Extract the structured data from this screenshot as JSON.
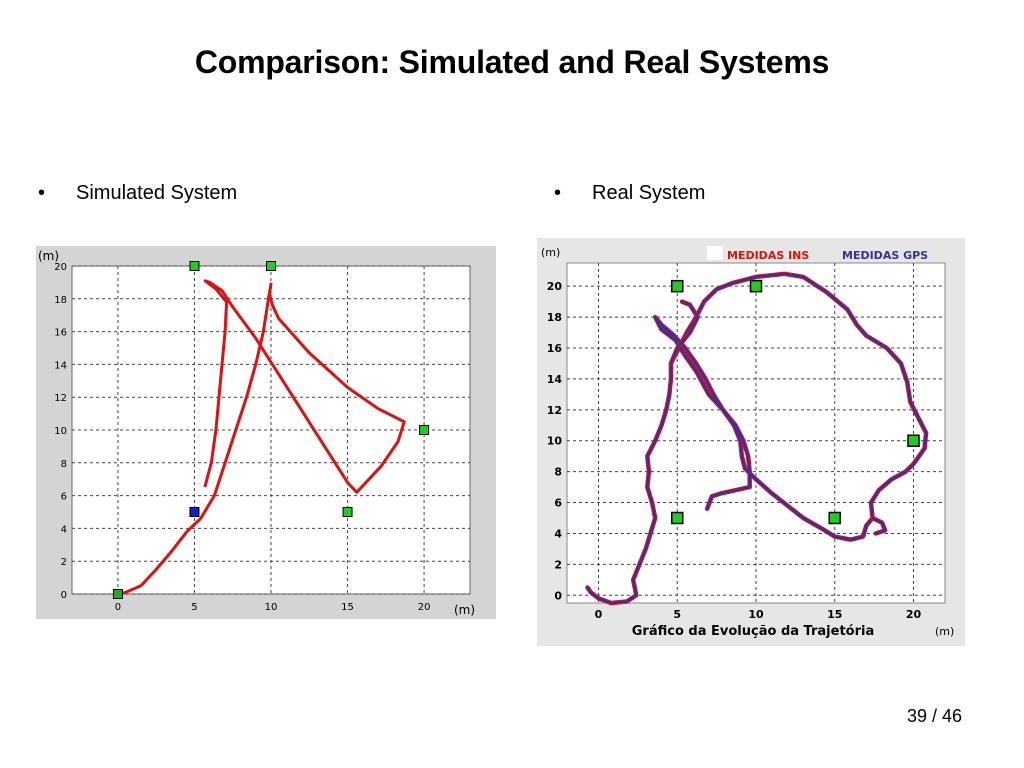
{
  "slide": {
    "title": "Comparison: Simulated and Real Systems",
    "page_number": "39 / 46",
    "bullets": [
      "Simulated System",
      "Real System"
    ]
  },
  "chart_data": [
    {
      "type": "scatter",
      "name": "simulated",
      "title": "",
      "xlabel": "(m)",
      "ylabel": "(m)",
      "xlim": [
        -3,
        23
      ],
      "ylim": [
        0,
        20
      ],
      "x_ticks": [
        0,
        5,
        10,
        15,
        20
      ],
      "y_ticks": [
        0,
        2,
        4,
        6,
        8,
        10,
        12,
        14,
        16,
        18,
        20
      ],
      "grid": true,
      "colors": {
        "trajectory": "#dd1111",
        "landmark": "#22cc22",
        "start": "#22aa22",
        "marker_blue": "#1122cc"
      },
      "landmarks": [
        {
          "x": 5,
          "y": 20
        },
        {
          "x": 10,
          "y": 20
        },
        {
          "x": 20,
          "y": 10
        },
        {
          "x": 15,
          "y": 5
        }
      ],
      "blue_marker": {
        "x": 5,
        "y": 5
      },
      "start_marker": {
        "x": 0,
        "y": 0
      },
      "trajectory": [
        [
          0,
          0
        ],
        [
          0.5,
          0.1
        ],
        [
          1.5,
          0.5
        ],
        [
          2.5,
          1.5
        ],
        [
          3.5,
          2.6
        ],
        [
          4.5,
          3.8
        ],
        [
          5.4,
          4.6
        ],
        [
          6.3,
          6.0
        ],
        [
          7.0,
          8.0
        ],
        [
          7.7,
          10.0
        ],
        [
          8.4,
          12.0
        ],
        [
          9.0,
          14.0
        ],
        [
          9.5,
          16.0
        ],
        [
          9.8,
          17.8
        ],
        [
          10.0,
          18.9
        ],
        [
          9.9,
          18.3
        ],
        [
          10.1,
          17.6
        ],
        [
          10.5,
          16.8
        ],
        [
          12.5,
          14.7
        ],
        [
          15.0,
          12.6
        ],
        [
          17.0,
          11.3
        ],
        [
          18.7,
          10.5
        ],
        [
          18.3,
          9.3
        ],
        [
          17.2,
          7.8
        ],
        [
          15.6,
          6.2
        ],
        [
          15.0,
          6.8
        ],
        [
          13.5,
          9.0
        ],
        [
          12.0,
          11.2
        ],
        [
          10.5,
          13.4
        ],
        [
          9.0,
          15.6
        ],
        [
          7.5,
          17.5
        ],
        [
          6.8,
          18.5
        ],
        [
          6.0,
          19.0
        ],
        [
          5.7,
          19.1
        ],
        [
          6.4,
          18.6
        ],
        [
          7.1,
          17.8
        ],
        [
          7.0,
          16.0
        ],
        [
          6.8,
          14.0
        ],
        [
          6.6,
          12.0
        ],
        [
          6.4,
          10.0
        ],
        [
          6.1,
          8.0
        ],
        [
          5.7,
          6.6
        ]
      ]
    },
    {
      "type": "scatter",
      "name": "real",
      "title": "Gráfico da Evolução da Trajetória",
      "xlabel": "(m)",
      "ylabel": "(m)",
      "xlim": [
        -2,
        22
      ],
      "ylim": [
        -0.5,
        21.5
      ],
      "x_ticks": [
        0,
        5,
        10,
        15,
        20
      ],
      "y_ticks": [
        0,
        2,
        4,
        6,
        8,
        10,
        12,
        14,
        16,
        18,
        20
      ],
      "grid": true,
      "legend": {
        "position": "top-right",
        "entries": [
          "MEDIDAS INS",
          "MEDIDAS GPS"
        ]
      },
      "colors": {
        "ins": "#dd1111",
        "gps": "#3a2fa0",
        "landmark": "#22cc22"
      },
      "landmarks": [
        {
          "x": 5,
          "y": 20
        },
        {
          "x": 10,
          "y": 20
        },
        {
          "x": 20,
          "y": 10
        },
        {
          "x": 5,
          "y": 5
        },
        {
          "x": 15,
          "y": 5
        }
      ],
      "trajectory": [
        [
          -0.7,
          0.5
        ],
        [
          -0.5,
          0.2
        ],
        [
          0.0,
          -0.2
        ],
        [
          0.8,
          -0.5
        ],
        [
          1.8,
          -0.4
        ],
        [
          2.4,
          0.0
        ],
        [
          2.2,
          1.0
        ],
        [
          2.6,
          2.0
        ],
        [
          3.0,
          3.0
        ],
        [
          3.3,
          4.0
        ],
        [
          3.6,
          5.0
        ],
        [
          3.4,
          6.0
        ],
        [
          3.1,
          7.0
        ],
        [
          3.2,
          8.0
        ],
        [
          3.1,
          9.0
        ],
        [
          3.6,
          10.0
        ],
        [
          4.0,
          11.0
        ],
        [
          4.3,
          12.0
        ],
        [
          4.5,
          13.0
        ],
        [
          4.6,
          14.0
        ],
        [
          4.6,
          15.0
        ],
        [
          5.1,
          16.0
        ],
        [
          5.6,
          17.0
        ],
        [
          6.2,
          18.0
        ],
        [
          6.7,
          19.0
        ],
        [
          7.5,
          19.8
        ],
        [
          8.5,
          20.2
        ],
        [
          10.0,
          20.6
        ],
        [
          11.8,
          20.8
        ],
        [
          13.0,
          20.6
        ],
        [
          14.5,
          19.6
        ],
        [
          15.8,
          18.5
        ],
        [
          16.4,
          17.5
        ],
        [
          17.0,
          16.8
        ],
        [
          18.3,
          16.0
        ],
        [
          19.2,
          15.0
        ],
        [
          19.6,
          13.8
        ],
        [
          19.8,
          12.5
        ],
        [
          20.3,
          11.5
        ],
        [
          20.8,
          10.5
        ],
        [
          20.7,
          9.5
        ],
        [
          20.0,
          8.5
        ],
        [
          19.5,
          8.0
        ],
        [
          18.6,
          7.5
        ],
        [
          17.8,
          6.8
        ],
        [
          17.3,
          6.0
        ],
        [
          17.4,
          5.0
        ],
        [
          17.0,
          4.5
        ],
        [
          16.8,
          3.8
        ],
        [
          16.0,
          3.6
        ],
        [
          15.0,
          3.8
        ],
        [
          14.2,
          4.3
        ],
        [
          13.0,
          5.0
        ],
        [
          12.0,
          5.8
        ],
        [
          11.0,
          6.6
        ],
        [
          10.0,
          7.5
        ],
        [
          9.3,
          8.2
        ],
        [
          9.1,
          9.0
        ],
        [
          9.0,
          10.0
        ],
        [
          8.6,
          11.0
        ],
        [
          7.9,
          12.0
        ],
        [
          7.3,
          13.0
        ],
        [
          6.8,
          14.0
        ],
        [
          6.2,
          15.0
        ],
        [
          5.5,
          16.0
        ],
        [
          4.8,
          16.8
        ],
        [
          4.0,
          17.5
        ],
        [
          3.6,
          18.0
        ],
        [
          4.0,
          17.2
        ],
        [
          4.9,
          16.5
        ],
        [
          5.5,
          15.5
        ],
        [
          6.2,
          14.5
        ],
        [
          7.0,
          13.0
        ],
        [
          7.9,
          12.0
        ],
        [
          8.7,
          11.0
        ],
        [
          9.2,
          10.0
        ],
        [
          9.5,
          9.0
        ],
        [
          9.6,
          8.0
        ],
        [
          9.6,
          7.0
        ],
        [
          8.7,
          6.8
        ],
        [
          7.8,
          6.6
        ],
        [
          7.2,
          6.4
        ],
        [
          6.9,
          5.6
        ]
      ],
      "trajectory_tail": [
        [
          17.4,
          5.0
        ],
        [
          18.0,
          4.7
        ],
        [
          18.2,
          4.2
        ],
        [
          17.6,
          4.0
        ]
      ],
      "crossing_segment": [
        [
          4.6,
          15.0
        ],
        [
          5.0,
          16.0
        ],
        [
          5.8,
          17.0
        ],
        [
          6.3,
          18.0
        ],
        [
          5.8,
          18.8
        ],
        [
          5.3,
          19.0
        ]
      ]
    }
  ]
}
